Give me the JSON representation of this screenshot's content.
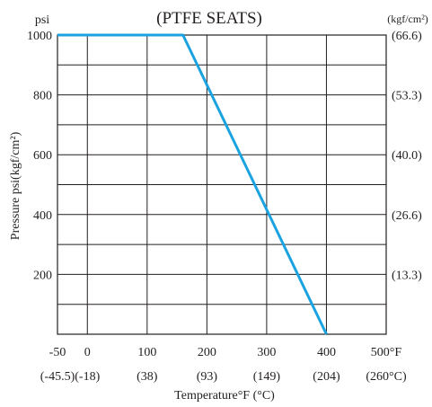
{
  "chart_data": {
    "type": "line",
    "title": "(PTFE  SEATS)",
    "xlabel": "Temperature°F (°C)",
    "ylabel": "Pressure  psi(kgf/cm²)",
    "left_unit": "psi",
    "right_unit": "(kgf/cm²)",
    "xlim": [
      -50,
      500
    ],
    "ylim": [
      0,
      1000
    ],
    "x_ticks": [
      {
        "value": -50,
        "label": "-50",
        "sub": "(-45.5)"
      },
      {
        "value": 0,
        "label": "0",
        "sub": "(-18)"
      },
      {
        "value": 100,
        "label": "100",
        "sub": "(38)"
      },
      {
        "value": 200,
        "label": "200",
        "sub": "(93)"
      },
      {
        "value": 300,
        "label": "300",
        "sub": "(149)"
      },
      {
        "value": 400,
        "label": "400",
        "sub": "(204)"
      },
      {
        "value": 500,
        "label": "500°F",
        "sub": "(260°C)"
      }
    ],
    "x_grid": [
      0,
      100,
      200,
      300,
      400
    ],
    "y_ticks": [
      {
        "value": 1000,
        "label": "1000",
        "right": "(66.6)"
      },
      {
        "value": 800,
        "label": "800",
        "right": "(53.3)"
      },
      {
        "value": 600,
        "label": "600",
        "right": "(40.0)"
      },
      {
        "value": 400,
        "label": "400",
        "right": "(26.6)"
      },
      {
        "value": 200,
        "label": "200",
        "right": "(13.3)"
      }
    ],
    "y_grid": [
      100,
      200,
      300,
      400,
      500,
      600,
      700,
      800,
      900
    ],
    "grid": true,
    "line_color": "#1aa3e0",
    "series": [
      {
        "x": [
          -50,
          160,
          400
        ],
        "y": [
          1000,
          1000,
          0
        ]
      }
    ]
  }
}
